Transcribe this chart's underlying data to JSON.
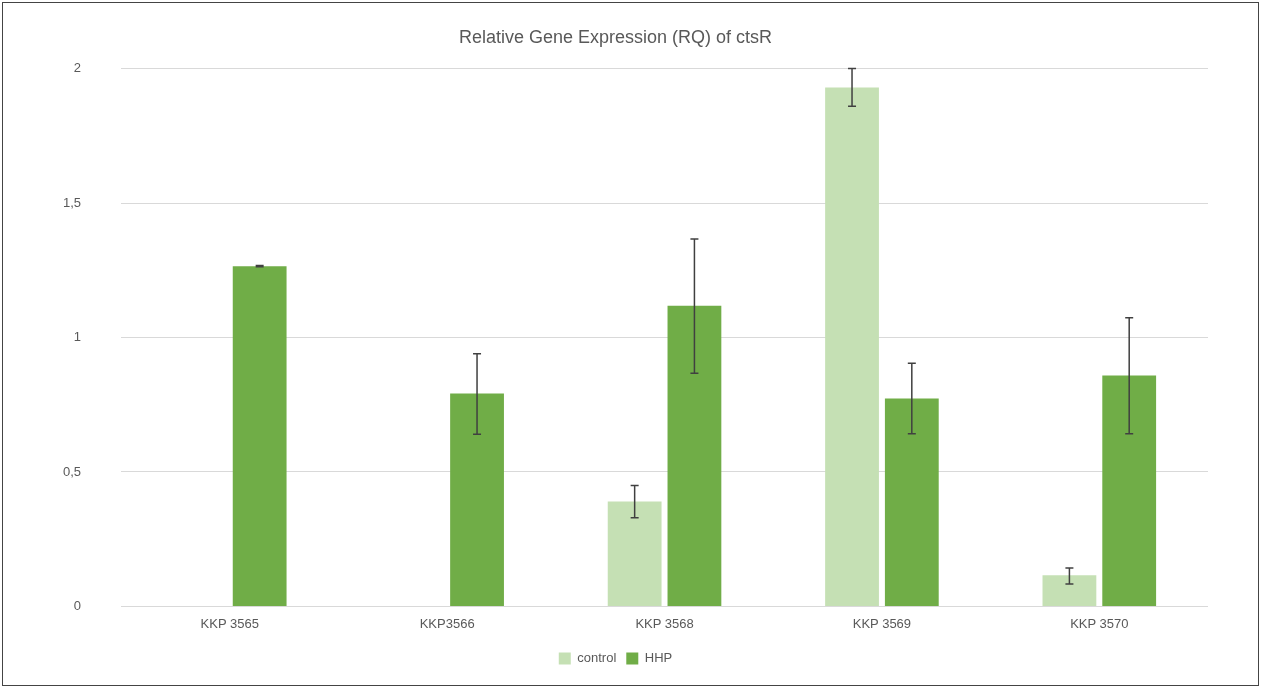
{
  "chart_data": {
    "type": "bar",
    "title": "Relative Gene Expression (RQ) of ctsR",
    "categories": [
      "KKP 3565",
      "KKP3566",
      "KKP 3568",
      "KKP 3569",
      "KKP 3570"
    ],
    "series": [
      {
        "name": "control",
        "color": "#c5e0b4",
        "values": [
          null,
          null,
          0.39,
          1.93,
          0.116
        ],
        "errors": [
          null,
          null,
          [
            0.33,
            0.45
          ],
          [
            1.86,
            2.0
          ],
          [
            0.083,
            0.143
          ]
        ]
      },
      {
        "name": "HHP",
        "color": "#70ad47",
        "values": [
          1.265,
          0.792,
          1.118,
          0.773,
          0.859
        ],
        "errors": [
          [
            1.263,
            1.268
          ],
          [
            0.64,
            0.94
          ],
          [
            0.867,
            1.366
          ],
          [
            0.642,
            0.904
          ],
          [
            0.642,
            1.073
          ]
        ]
      }
    ],
    "ylim": [
      0,
      2
    ],
    "yticks": [
      0,
      {
        "value": 0.5,
        "label": "0,5"
      },
      1,
      {
        "value": 1.5,
        "label": "1,5"
      },
      2
    ],
    "grid": "y",
    "legend": "bottom"
  }
}
